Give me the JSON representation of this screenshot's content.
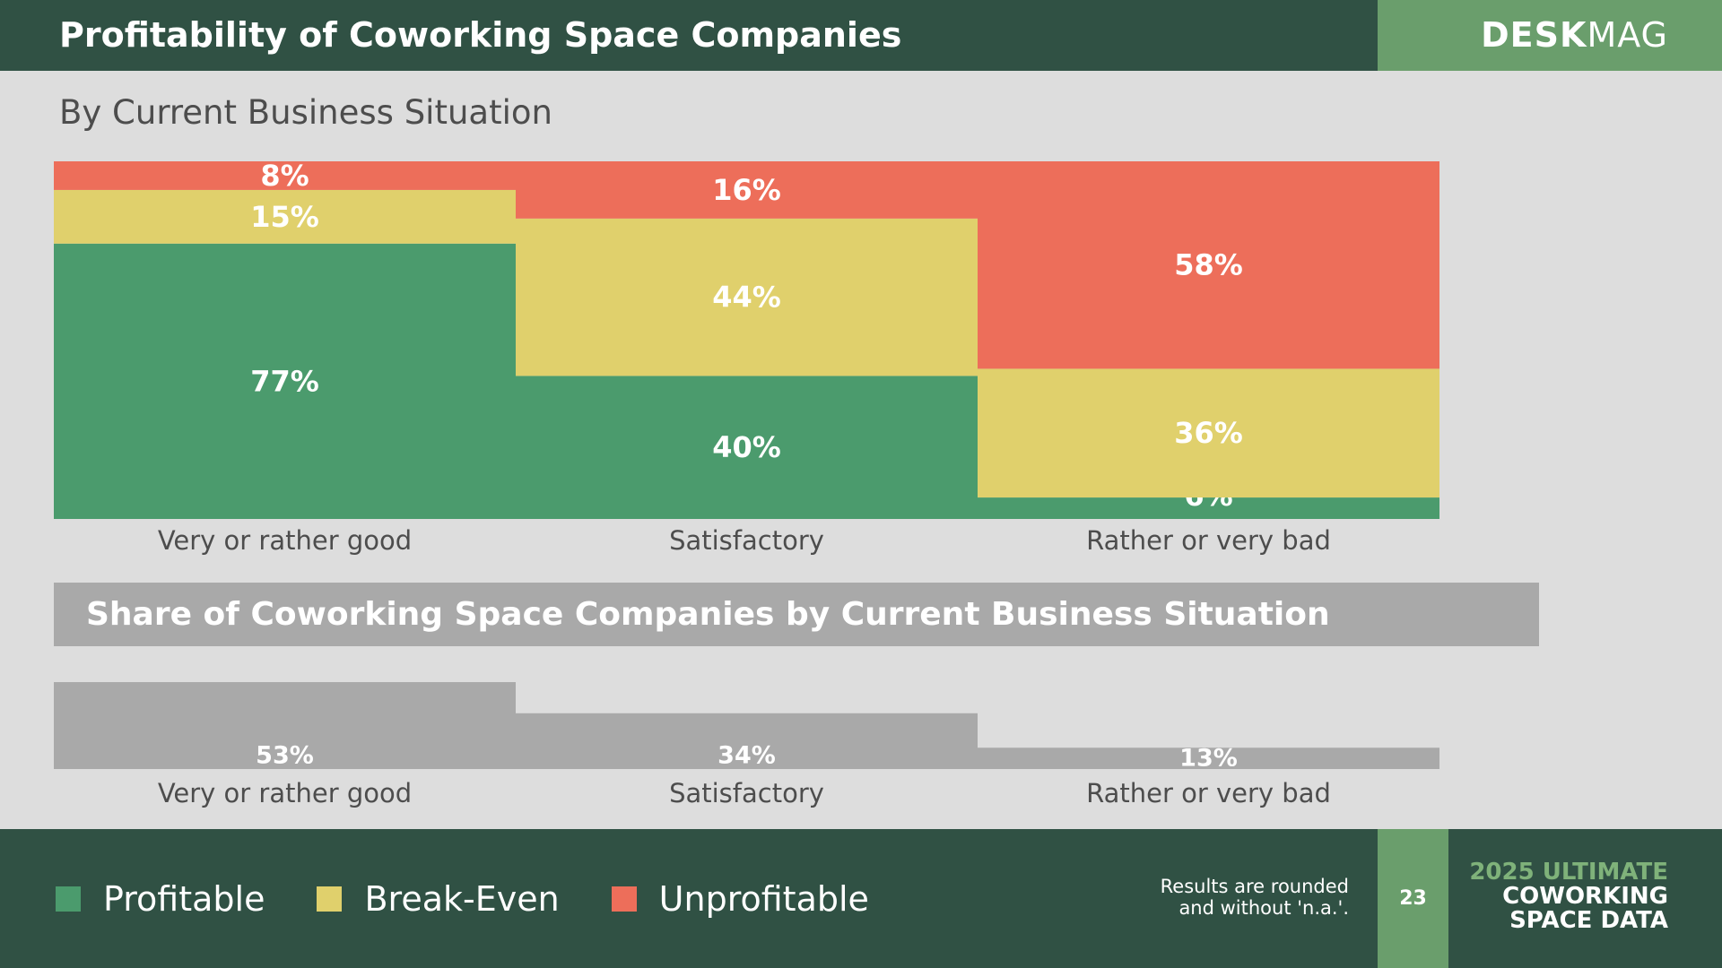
{
  "header": {
    "title": "Profitability of Coworking Space Companies",
    "brand_bold": "DESK",
    "brand_light": "MAG"
  },
  "subtitle": "By Current Business Situation",
  "section_title": "Share of Coworking Space Companies by Current Business Situation",
  "colors": {
    "profitable": "#4b9b6d",
    "break_even": "#e0d06c",
    "unprofitable": "#ed6e5a",
    "share": "#a9a9a9"
  },
  "chart_data": [
    {
      "type": "bar",
      "stacked": true,
      "categories": [
        "Very or rather good",
        "Satisfactory",
        "Rather or very bad"
      ],
      "series": [
        {
          "name": "Profitable",
          "values": [
            77,
            40,
            6
          ],
          "labels": [
            "77%",
            "40%",
            "6%"
          ]
        },
        {
          "name": "Break-Even",
          "values": [
            15,
            44,
            36
          ],
          "labels": [
            "15%",
            "44%",
            "36%"
          ]
        },
        {
          "name": "Unprofitable",
          "values": [
            8,
            16,
            58
          ],
          "labels": [
            "8%",
            "16%",
            "58%"
          ]
        }
      ],
      "ylim": [
        0,
        100
      ],
      "grid": false,
      "legend": "bottom"
    },
    {
      "type": "bar",
      "title": "Share of Coworking Space Companies by Current Business Situation",
      "categories": [
        "Very or rather good",
        "Satisfactory",
        "Rather or very bad"
      ],
      "values": [
        53,
        34,
        13
      ],
      "labels": [
        "53%",
        "34%",
        "13%"
      ],
      "grid": false
    }
  ],
  "legend": [
    {
      "name": "Profitable",
      "color": "#4b9b6d"
    },
    {
      "name": "Break-Even",
      "color": "#e0d06c"
    },
    {
      "name": "Unprofitable",
      "color": "#ed6e5a"
    }
  ],
  "footer": {
    "note_line1": "Results are rounded",
    "note_line2": "and without 'n.a.'.",
    "page_number": "23",
    "report_line1": "2025 ULTIMATE",
    "report_line2": "COWORKING",
    "report_line3": "SPACE DATA"
  }
}
